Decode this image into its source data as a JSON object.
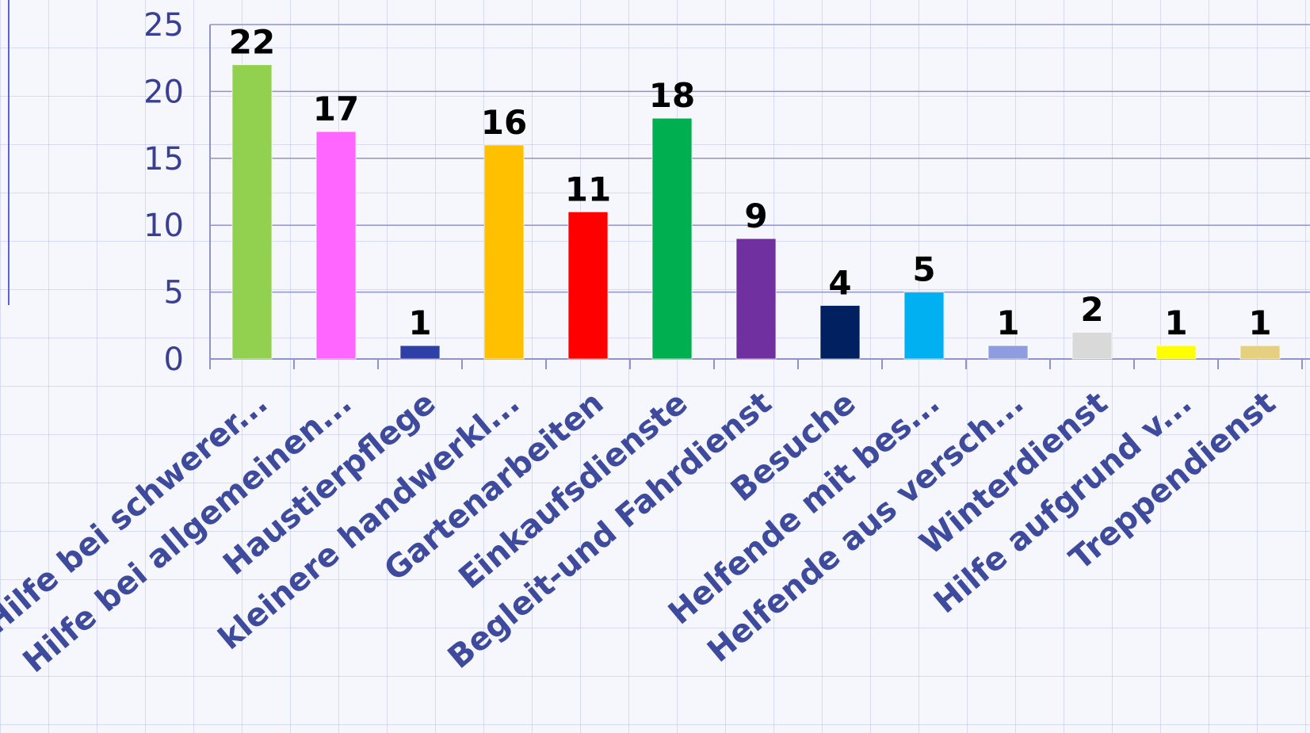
{
  "chart_data": {
    "type": "bar",
    "categories": [
      "Hilfe bei schwerer...",
      "Hilfe bei allgemeinen...",
      "Haustierpflege",
      "kleinere handwerkl...",
      "Gartenarbeiten",
      "Einkaufsdienste",
      "Begleit-und Fahrdienst",
      "Besuche",
      "Helfende mit bes...",
      "Helfende aus versch...",
      "Winterdienst",
      "Hilfe aufgrund v...",
      "Treppendienst"
    ],
    "values": [
      22,
      17,
      1,
      16,
      11,
      18,
      9,
      4,
      5,
      1,
      2,
      1,
      1
    ],
    "colors": [
      "#92d050",
      "#ff66ff",
      "#2e40a8",
      "#ffc000",
      "#ff0000",
      "#00b050",
      "#7030a0",
      "#002060",
      "#00b0f0",
      "#8e9ce0",
      "#d9d9d9",
      "#ffff00",
      "#e6cf7f"
    ],
    "yticks": [
      "0",
      "5",
      "10",
      "15",
      "20",
      "25"
    ],
    "ylim": [
      0,
      25
    ],
    "grid": true,
    "title": "",
    "xlabel": "",
    "ylabel": ""
  }
}
